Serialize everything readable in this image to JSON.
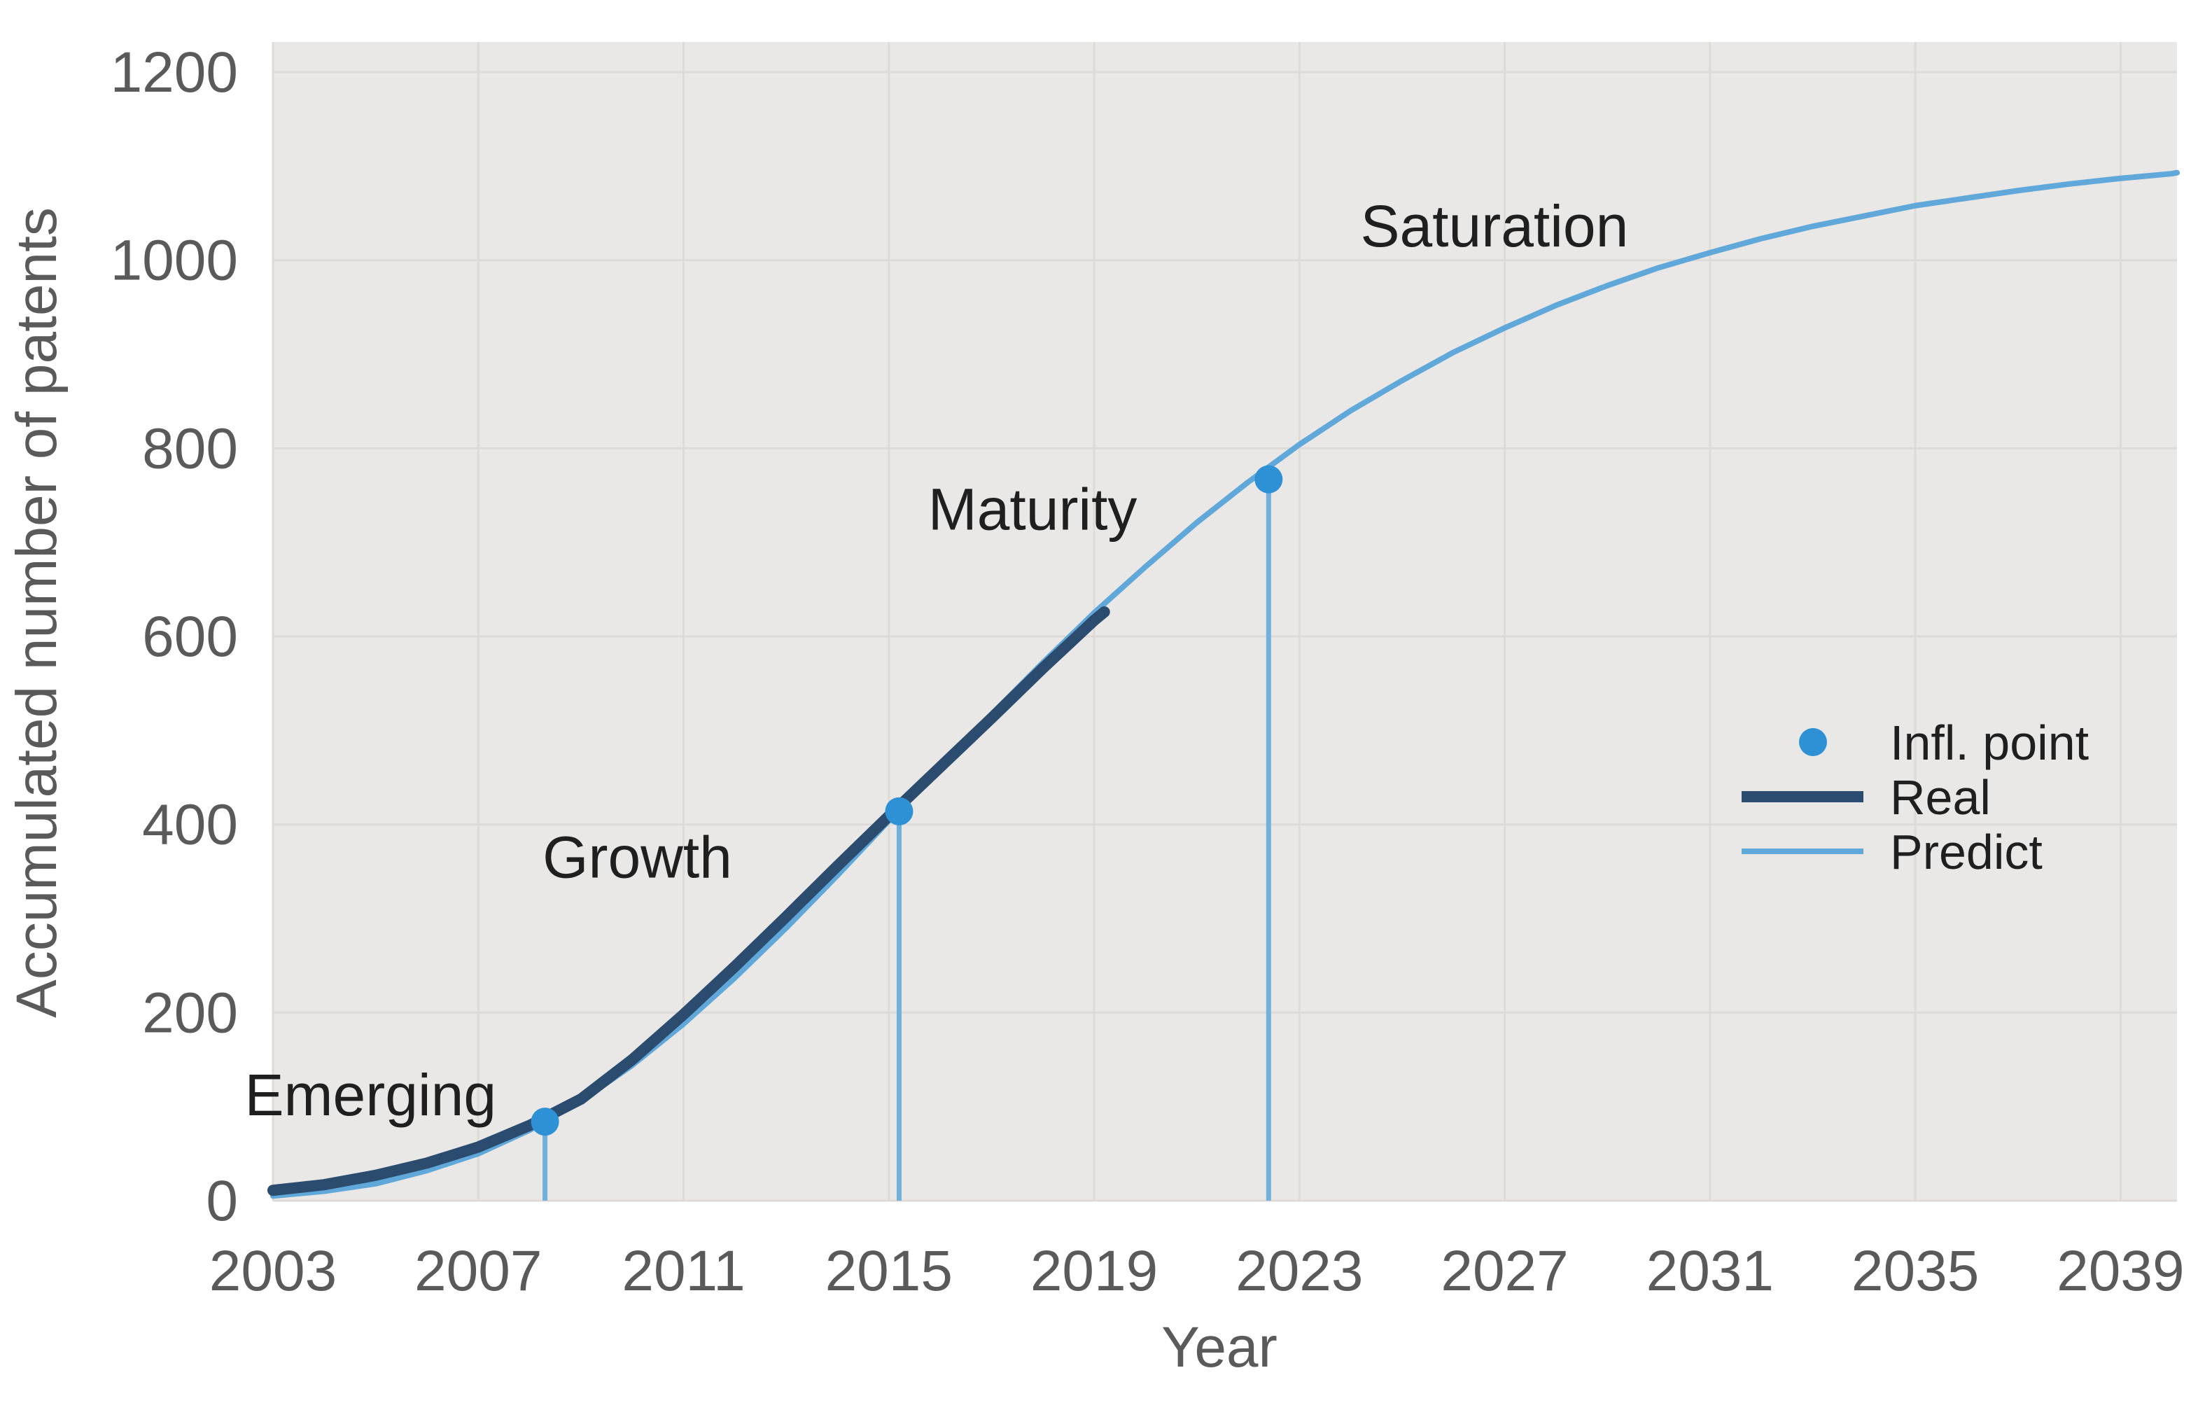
{
  "chart_data": {
    "type": "line",
    "title": "",
    "xlabel": "Year",
    "ylabel": "Accumulated number of patents",
    "xlim": [
      2003,
      2040.1
    ],
    "ylim": [
      0,
      1232
    ],
    "xticks": [
      2003,
      2007,
      2011,
      2015,
      2019,
      2023,
      2027,
      2031,
      2035,
      2039
    ],
    "yticks": [
      0,
      200,
      400,
      600,
      800,
      1000,
      1200
    ],
    "grid": true,
    "plot_bg": "#e9e8e6",
    "grid_color": "#dedad7",
    "tick_color": "#5a5a5a",
    "annotation_color": "#1f1f1f",
    "series": [
      {
        "name": "Real",
        "color": "#2b4b6f",
        "width": 16,
        "x": [
          2003,
          2004,
          2005,
          2006,
          2007,
          2008,
          2009,
          2010,
          2011,
          2012,
          2013,
          2014,
          2015,
          2016,
          2017,
          2018,
          2019,
          2019.2
        ],
        "y": [
          11,
          17,
          27,
          40,
          57,
          80,
          108,
          150,
          198,
          249,
          302,
          356,
          409,
          461,
          513,
          566,
          617,
          626
        ]
      },
      {
        "name": "Predict",
        "color": "#5fa8d9",
        "width": 8,
        "x": [
          2003,
          2004,
          2005,
          2006,
          2007,
          2008,
          2009,
          2010,
          2011,
          2012,
          2013,
          2014,
          2015,
          2016,
          2017,
          2018,
          2019,
          2020,
          2021,
          2022,
          2023,
          2024,
          2025,
          2026,
          2027,
          2028,
          2029,
          2030,
          2031,
          2032,
          2033,
          2034,
          2035,
          2036,
          2037,
          2038,
          2039,
          2040,
          2040.1
        ],
        "y": [
          5,
          10,
          18,
          32,
          50,
          75,
          106,
          144,
          188,
          237,
          290,
          346,
          404,
          461,
          517,
          572,
          625,
          674,
          721,
          764,
          804,
          840,
          872,
          902,
          928,
          952,
          973,
          992,
          1008,
          1023,
          1036,
          1047,
          1058,
          1066,
          1074,
          1081,
          1087,
          1092,
          1093
        ]
      }
    ],
    "inflection_points": {
      "name": "Infl. point",
      "color": "#2e90d5",
      "radius": 20,
      "dropline_color": "#71afdd",
      "dropline_width": 7,
      "points": [
        {
          "x": 2008.3,
          "y": 84
        },
        {
          "x": 2015.2,
          "y": 414
        },
        {
          "x": 2022.4,
          "y": 767
        }
      ]
    },
    "phase_labels": [
      {
        "label": "Emerging",
        "x": 2004.9,
        "y": 113
      },
      {
        "label": "Growth",
        "x": 2010.1,
        "y": 366
      },
      {
        "label": "Maturity",
        "x": 2017.8,
        "y": 736
      },
      {
        "label": "Saturation",
        "x": 2026.8,
        "y": 1037
      }
    ],
    "legend": {
      "position": "right-middle",
      "items": [
        {
          "label": "Infl. point",
          "type": "point",
          "color": "#2e90d5"
        },
        {
          "label": "Real",
          "type": "line",
          "color": "#2b4b6f",
          "width": 16
        },
        {
          "label": "Predict",
          "type": "line",
          "color": "#5fa8d9",
          "width": 8
        }
      ]
    }
  }
}
